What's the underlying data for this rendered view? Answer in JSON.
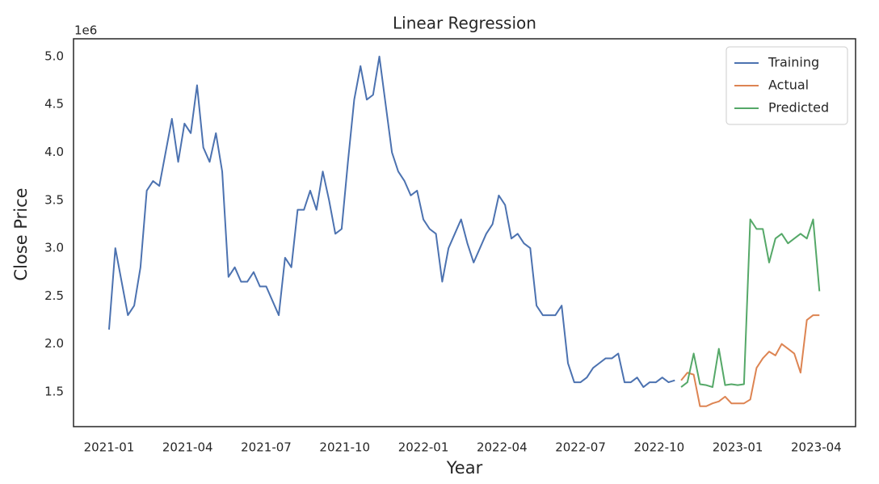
{
  "chart_data": {
    "type": "line",
    "title": "Linear Regression",
    "x_label": "Year",
    "y_label": "Close Price",
    "y_offset_label": "1e6",
    "xlim": [
      2020.887,
      2023.375
    ],
    "ylim": [
      1.137,
      5.185
    ],
    "xticks": [
      {
        "value": 2021.0,
        "label": "2021-01"
      },
      {
        "value": 2021.25,
        "label": "2021-04"
      },
      {
        "value": 2021.5,
        "label": "2021-07"
      },
      {
        "value": 2021.75,
        "label": "2021-10"
      },
      {
        "value": 2022.0,
        "label": "2022-01"
      },
      {
        "value": 2022.25,
        "label": "2022-04"
      },
      {
        "value": 2022.5,
        "label": "2022-07"
      },
      {
        "value": 2022.75,
        "label": "2022-10"
      },
      {
        "value": 2023.0,
        "label": "2023-01"
      },
      {
        "value": 2023.25,
        "label": "2023-04"
      }
    ],
    "yticks": [
      1.5,
      {
        "value": 2,
        "label": "2.0"
      },
      2.5,
      {
        "value": 3,
        "label": "3.0"
      },
      3.5,
      {
        "value": 4,
        "label": "4.0"
      },
      4.5,
      {
        "value": 5,
        "label": "5.0"
      }
    ],
    "grid": false,
    "legend": "upper right",
    "series": [
      {
        "name": "Training",
        "color": "#4c72b0",
        "x": [
          2021.0,
          2021.02,
          2021.04,
          2021.06,
          2021.08,
          2021.1,
          2021.12,
          2021.14,
          2021.16,
          2021.18,
          2021.2,
          2021.22,
          2021.24,
          2021.26,
          2021.28,
          2021.3,
          2021.32,
          2021.34,
          2021.36,
          2021.38,
          2021.4,
          2021.42,
          2021.44,
          2021.46,
          2021.48,
          2021.5,
          2021.52,
          2021.54,
          2021.56,
          2021.58,
          2021.6,
          2021.62,
          2021.64,
          2021.66,
          2021.68,
          2021.7,
          2021.72,
          2021.74,
          2021.76,
          2021.78,
          2021.8,
          2021.82,
          2021.84,
          2021.86,
          2021.88,
          2021.9,
          2021.92,
          2021.94,
          2021.96,
          2021.98,
          2022.0,
          2022.02,
          2022.04,
          2022.06,
          2022.08,
          2022.1,
          2022.12,
          2022.14,
          2022.16,
          2022.18,
          2022.2,
          2022.22,
          2022.24,
          2022.26,
          2022.28,
          2022.3,
          2022.32,
          2022.34,
          2022.36,
          2022.38,
          2022.4,
          2022.42,
          2022.44,
          2022.46,
          2022.48,
          2022.5,
          2022.52,
          2022.54,
          2022.56,
          2022.58,
          2022.6,
          2022.62,
          2022.64,
          2022.66,
          2022.68,
          2022.7,
          2022.72,
          2022.74,
          2022.76,
          2022.78,
          2022.8
        ],
        "values": [
          2.15,
          3.0,
          2.65,
          2.3,
          2.4,
          2.8,
          3.6,
          3.7,
          3.65,
          4.0,
          4.35,
          3.9,
          4.3,
          4.2,
          4.7,
          4.05,
          3.9,
          4.2,
          3.8,
          2.7,
          2.8,
          2.65,
          2.65,
          2.75,
          2.6,
          2.6,
          2.45,
          2.3,
          2.9,
          2.8,
          3.4,
          3.4,
          3.6,
          3.4,
          3.8,
          3.5,
          3.15,
          3.2,
          3.9,
          4.55,
          4.9,
          4.55,
          4.6,
          5.0,
          4.5,
          4.0,
          3.8,
          3.7,
          3.55,
          3.6,
          3.3,
          3.2,
          3.15,
          2.65,
          3.0,
          3.15,
          3.3,
          3.05,
          2.85,
          3.0,
          3.15,
          3.25,
          3.55,
          3.45,
          3.1,
          3.15,
          3.05,
          3.0,
          2.4,
          2.3,
          2.3,
          2.3,
          2.4,
          1.8,
          1.6,
          1.6,
          1.65,
          1.75,
          1.8,
          1.85,
          1.85,
          1.9,
          1.6,
          1.6,
          1.65,
          1.55,
          1.6,
          1.6,
          1.65,
          1.6,
          1.62
        ]
      },
      {
        "name": "Actual",
        "color": "#dd8452",
        "x": [
          2022.82,
          2022.84,
          2022.86,
          2022.88,
          2022.9,
          2022.92,
          2022.94,
          2022.96,
          2022.98,
          2023.0,
          2023.02,
          2023.04,
          2023.06,
          2023.08,
          2023.1,
          2023.12,
          2023.14,
          2023.16,
          2023.18,
          2023.2,
          2023.22,
          2023.24,
          2023.26
        ],
        "values": [
          1.62,
          1.7,
          1.68,
          1.35,
          1.35,
          1.38,
          1.4,
          1.45,
          1.38,
          1.38,
          1.38,
          1.42,
          1.75,
          1.85,
          1.92,
          1.88,
          2.0,
          1.95,
          1.9,
          1.7,
          2.25,
          2.3,
          2.3
        ]
      },
      {
        "name": "Predicted",
        "color": "#55a868",
        "x": [
          2022.82,
          2022.84,
          2022.86,
          2022.88,
          2022.9,
          2022.92,
          2022.94,
          2022.96,
          2022.98,
          2023.0,
          2023.02,
          2023.04,
          2023.06,
          2023.08,
          2023.1,
          2023.12,
          2023.14,
          2023.16,
          2023.18,
          2023.2,
          2023.22,
          2023.24,
          2023.26
        ],
        "values": [
          1.55,
          1.6,
          1.9,
          1.58,
          1.57,
          1.55,
          1.95,
          1.57,
          1.58,
          1.57,
          1.58,
          3.3,
          3.2,
          3.2,
          2.85,
          3.1,
          3.15,
          3.05,
          3.1,
          3.15,
          3.1,
          3.3,
          2.55
        ]
      }
    ]
  }
}
